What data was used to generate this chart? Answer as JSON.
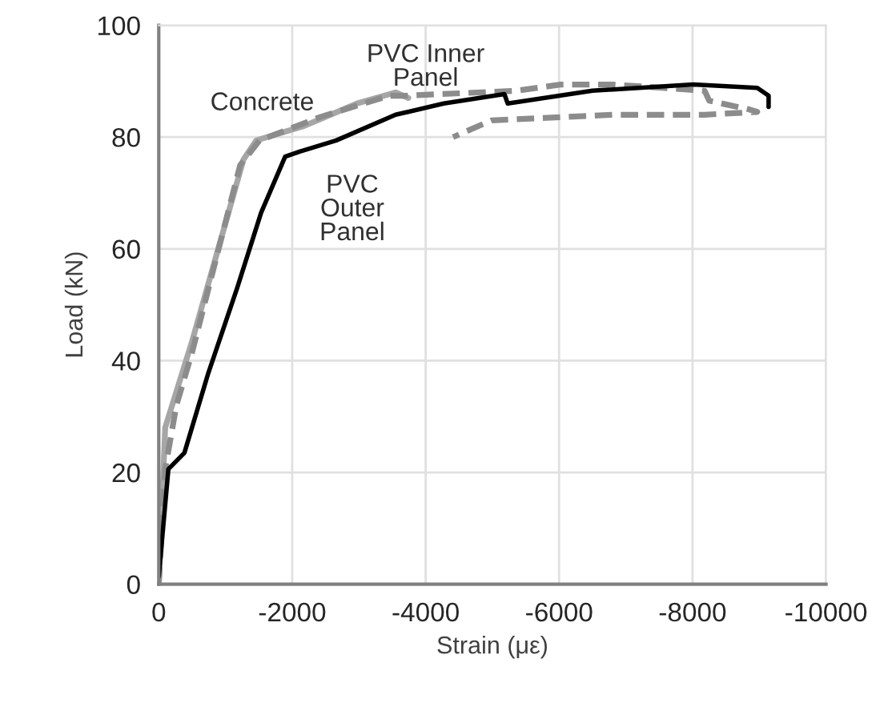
{
  "chart_data": {
    "type": "line",
    "xlabel": "Strain (με)",
    "ylabel": "Load (kN)",
    "xlim": [
      0,
      -10000
    ],
    "xticks": [
      0,
      -2000,
      -4000,
      -6000,
      -8000,
      -10000
    ],
    "ylim": [
      0,
      100
    ],
    "yticks": [
      0,
      20,
      40,
      60,
      80,
      100
    ],
    "grid": true,
    "legend": false,
    "marker": "none",
    "series": [
      {
        "name": "Concrete",
        "color": "#a6a6a6",
        "line_style": "solid",
        "x": [
          0,
          -96,
          -500,
          -1270,
          -1460,
          -2180,
          -2970,
          -3550,
          -3740
        ],
        "values": [
          0,
          28,
          43.5,
          76,
          79.4,
          82,
          86,
          88,
          87
        ]
      },
      {
        "name": "PVC Inner\nPanel",
        "color": "#8c8c8c",
        "line_style": "dashed",
        "x": [
          0,
          -96,
          -264,
          -500,
          -1220,
          -1510,
          -2420,
          -3450,
          -3690,
          -5370,
          -6020,
          -6810,
          -8180,
          -8250,
          -8830,
          -8970,
          -8180,
          -6810,
          -4990,
          -4410
        ],
        "values": [
          0,
          20.6,
          32,
          41.5,
          75,
          79.4,
          83.6,
          87.4,
          87.4,
          88.3,
          89.4,
          89.4,
          88.3,
          86.5,
          85,
          84.5,
          84,
          84,
          83,
          80
        ]
      },
      {
        "name": "PVC\nOuter\nPanel",
        "color": "#000000",
        "line_style": "solid",
        "x": [
          0,
          -144,
          -384,
          -743,
          -1175,
          -1535,
          -1894,
          -2110,
          -2660,
          -3550,
          -4270,
          -5180,
          -5230,
          -6500,
          -8010,
          -8970,
          -9140,
          -9140
        ],
        "values": [
          1.4,
          20.6,
          23.5,
          37.8,
          53,
          66.5,
          76.5,
          77.4,
          79.4,
          84,
          86,
          87.7,
          86,
          88.3,
          89.4,
          88.8,
          87.4,
          85.4
        ]
      }
    ]
  }
}
